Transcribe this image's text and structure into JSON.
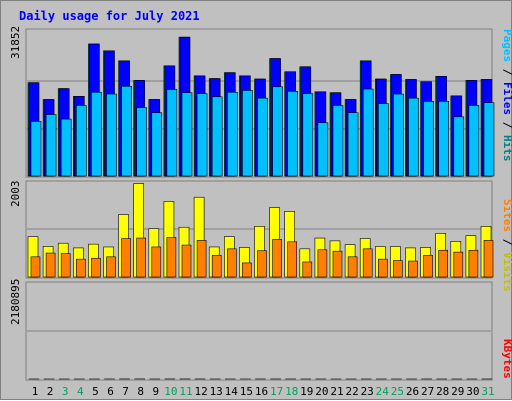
{
  "chart_data": {
    "type": "bar",
    "title": "Daily usage for July 2021",
    "categories": [
      "1",
      "2",
      "3",
      "4",
      "5",
      "6",
      "7",
      "8",
      "9",
      "10",
      "11",
      "12",
      "13",
      "14",
      "15",
      "16",
      "17",
      "18",
      "19",
      "20",
      "21",
      "22",
      "23",
      "24",
      "25",
      "26",
      "27",
      "28",
      "29",
      "30",
      "31"
    ],
    "weekend_days": [
      "3",
      "4",
      "10",
      "11",
      "17",
      "18",
      "24",
      "25",
      "31"
    ],
    "panels": [
      {
        "id": "hits-files-pages",
        "ymax_label": "31852",
        "ylim": [
          0,
          31852
        ],
        "right_labels": [
          {
            "text": "Hits",
            "color": "#008080"
          },
          {
            "text": "Files",
            "color": "#0000ff"
          },
          {
            "text": "Pages",
            "color": "#00c0ff"
          }
        ],
        "series": [
          {
            "name": "Hits",
            "color": "#008080",
            "values": [
              20500,
              16800,
              19200,
              17500,
              29000,
              27500,
              25300,
              21000,
              16800,
              24200,
              30500,
              22000,
              21400,
              22700,
              22000,
              21300,
              25800,
              22900,
              24000,
              18500,
              18300,
              16800,
              25300,
              21300,
              22300,
              21200,
              20700,
              21900,
              17600,
              21000,
              21200
            ]
          },
          {
            "name": "Files",
            "color": "#0000ff",
            "values": [
              20500,
              16800,
              19200,
              17500,
              29000,
              27500,
              25300,
              21000,
              16800,
              24200,
              30500,
              22000,
              21400,
              22700,
              22000,
              21300,
              25800,
              22900,
              24000,
              18500,
              18300,
              16800,
              25300,
              21300,
              22300,
              21200,
              20700,
              21900,
              17600,
              21000,
              21200
            ]
          },
          {
            "name": "Pages",
            "color": "#00c0ff",
            "values": [
              12000,
              13500,
              12500,
              15500,
              18400,
              18000,
              19700,
              15000,
              13900,
              19000,
              18300,
              18100,
              17400,
              18400,
              18800,
              17100,
              19600,
              18600,
              18100,
              11700,
              15500,
              13900,
              19100,
              15900,
              18000,
              17100,
              16400,
              16400,
              13000,
              15500,
              16100
            ]
          }
        ]
      },
      {
        "id": "visits-sites",
        "ymax_label": "2003",
        "ylim": [
          0,
          2003
        ],
        "right_labels": [
          {
            "text": "Visits",
            "color": "#c0c000"
          },
          {
            "text": "Sites",
            "color": "#ff8000"
          }
        ],
        "series": [
          {
            "name": "Visits",
            "color": "#ffff00",
            "values": [
              860,
              650,
              720,
              620,
              700,
              640,
              1330,
              1990,
              1030,
              1610,
              1060,
              1700,
              640,
              860,
              630,
              1080,
              1480,
              1400,
              600,
              830,
              770,
              690,
              820,
              650,
              650,
              620,
              630,
              930,
              760,
              880,
              1080
            ]
          },
          {
            "name": "Sites",
            "color": "#ff8000",
            "values": [
              430,
              510,
              500,
              380,
              400,
              430,
              820,
              830,
              640,
              840,
              680,
              780,
              460,
              600,
              300,
              560,
              800,
              750,
              320,
              580,
              550,
              430,
              600,
              380,
              350,
              340,
              460,
              570,
              530,
              570,
              780
            ]
          }
        ]
      },
      {
        "id": "kbytes",
        "ymax_label": "2180895",
        "ylim": [
          0,
          2180895
        ],
        "right_labels": [
          {
            "text": "KBytes",
            "color": "#ff0000"
          }
        ],
        "series": [
          {
            "name": "KBytes",
            "color": "#ff0000",
            "values": [
              760,
              360,
              590,
              340,
              690,
              800,
              1950,
              2080,
              710,
              1500,
              1730,
              1260,
              420,
              530,
              230,
              830,
              1290,
              1080,
              680,
              680,
              250,
              250,
              640,
              530,
              410,
              530,
              860,
              670,
              370,
              300,
              1290
            ]
          }
        ]
      }
    ],
    "colors": {
      "background": "#c0c0c0",
      "plot_background": "#c0c0c0",
      "title": "#0000ff",
      "gridline": "#808080",
      "weekday_label": "#000000",
      "weekend_label": "#00a060"
    }
  }
}
